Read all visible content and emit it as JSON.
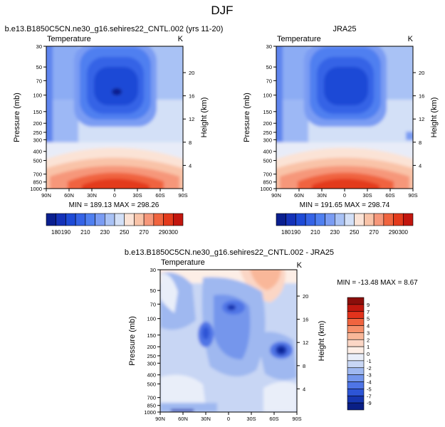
{
  "figure": {
    "title": "DJF"
  },
  "chart_data": [
    {
      "type": "heatmap",
      "title": "b.e13.B1850C5CN.ne30_g16.sehires22_CNTL.002 (yrs 11-20)",
      "left_subtitle": "Temperature",
      "right_subtitle": "K",
      "xlabel": "",
      "ylabel": "Pressure (mb)",
      "ylabel_right": "Height (km)",
      "x_ticks": [
        "90N",
        "60N",
        "30N",
        "0",
        "30S",
        "60S",
        "90S"
      ],
      "x_values": [
        90,
        60,
        30,
        0,
        -30,
        -60,
        -90
      ],
      "y_ticks": [
        "30",
        "50",
        "70",
        "100",
        "150",
        "200",
        "250",
        "300",
        "400",
        "500",
        "700",
        "850",
        "1000"
      ],
      "y_values": [
        30,
        50,
        70,
        100,
        150,
        200,
        250,
        300,
        400,
        500,
        700,
        850,
        1000
      ],
      "y_scale": "log",
      "ylim": [
        1000,
        30
      ],
      "height_ticks": [
        "4",
        "8",
        "12",
        "16",
        "20"
      ],
      "height_values_km": [
        4,
        8,
        12,
        16,
        20
      ],
      "stats": "MIN = 189.13   MAX = 298.26",
      "stats_values": {
        "min": 189.13,
        "max": 298.26
      },
      "colorbar": {
        "orientation": "horizontal",
        "levels": [
          180,
          190,
          200,
          210,
          220,
          230,
          240,
          250,
          260,
          270,
          280,
          290,
          300
        ],
        "labels": [
          "180",
          "190",
          "210",
          "230",
          "250",
          "270",
          "290",
          "300"
        ],
        "colors": [
          "#0a1f8f",
          "#1432b8",
          "#1e4ad6",
          "#3563e6",
          "#4f7ff0",
          "#7a9cf3",
          "#a9c2f5",
          "#d3e0f7",
          "#fbe3d6",
          "#f9c3a8",
          "#f6977a",
          "#f0643f",
          "#e33a1c",
          "#c2160e"
        ]
      }
    },
    {
      "type": "heatmap",
      "title": "JRA25",
      "left_subtitle": "Temperature",
      "right_subtitle": "K",
      "xlabel": "",
      "ylabel": "Pressure (mb)",
      "ylabel_right": "Height (km)",
      "x_ticks": [
        "90N",
        "60N",
        "30N",
        "0",
        "30S",
        "60S",
        "90S"
      ],
      "x_values": [
        90,
        60,
        30,
        0,
        -30,
        -60,
        -90
      ],
      "y_ticks": [
        "30",
        "50",
        "70",
        "100",
        "150",
        "200",
        "250",
        "300",
        "400",
        "500",
        "700",
        "850",
        "1000"
      ],
      "y_values": [
        30,
        50,
        70,
        100,
        150,
        200,
        250,
        300,
        400,
        500,
        700,
        850,
        1000
      ],
      "y_scale": "log",
      "ylim": [
        1000,
        30
      ],
      "height_ticks": [
        "4",
        "8",
        "12",
        "16",
        "20"
      ],
      "height_values_km": [
        4,
        8,
        12,
        16,
        20
      ],
      "stats": "MIN = 191.65   MAX = 298.74",
      "stats_values": {
        "min": 191.65,
        "max": 298.74
      },
      "colorbar": {
        "orientation": "horizontal",
        "levels": [
          180,
          190,
          200,
          210,
          220,
          230,
          240,
          250,
          260,
          270,
          280,
          290,
          300
        ],
        "labels": [
          "180",
          "190",
          "210",
          "230",
          "250",
          "270",
          "290",
          "300"
        ],
        "colors": [
          "#0a1f8f",
          "#1432b8",
          "#1e4ad6",
          "#3563e6",
          "#4f7ff0",
          "#7a9cf3",
          "#a9c2f5",
          "#d3e0f7",
          "#fbe3d6",
          "#f9c3a8",
          "#f6977a",
          "#f0643f",
          "#e33a1c",
          "#c2160e"
        ]
      }
    },
    {
      "type": "heatmap",
      "title": "b.e13.B1850C5CN.ne30_g16.sehires22_CNTL.002 - JRA25",
      "left_subtitle": "Temperature",
      "right_subtitle": "K",
      "xlabel": "",
      "ylabel": "Pressure (mb)",
      "ylabel_right": "Height (km)",
      "x_ticks": [
        "90N",
        "60N",
        "30N",
        "0",
        "30S",
        "60S",
        "90S"
      ],
      "x_values": [
        90,
        60,
        30,
        0,
        -30,
        -60,
        -90
      ],
      "y_ticks": [
        "30",
        "50",
        "70",
        "100",
        "150",
        "200",
        "250",
        "300",
        "400",
        "500",
        "700",
        "850",
        "1000"
      ],
      "y_values": [
        30,
        50,
        70,
        100,
        150,
        200,
        250,
        300,
        400,
        500,
        700,
        850,
        1000
      ],
      "y_scale": "log",
      "ylim": [
        1000,
        30
      ],
      "height_ticks": [
        "4",
        "8",
        "12",
        "16",
        "20"
      ],
      "height_values_km": [
        4,
        8,
        12,
        16,
        20
      ],
      "stats": "MIN = -13.48   MAX =  8.67",
      "stats_values": {
        "min": -13.48,
        "max": 8.67
      },
      "colorbar": {
        "orientation": "vertical",
        "levels": [
          -9,
          -7,
          -5,
          -4,
          -3,
          -2,
          -1,
          0,
          1,
          2,
          3,
          4,
          5,
          7,
          9
        ],
        "labels": [
          "9",
          "7",
          "5",
          "4",
          "3",
          "2",
          "1",
          "0",
          "-1",
          "-2",
          "-3",
          "-4",
          "-5",
          "-7",
          "-9"
        ],
        "colors_top_to_bottom": [
          "#8b0e0b",
          "#c0180f",
          "#e2331c",
          "#f0643f",
          "#f6906b",
          "#f9b799",
          "#fbd6c5",
          "#fdeee6",
          "#e9eef9",
          "#c8d6f4",
          "#9fb8f0",
          "#7496ec",
          "#4f75e6",
          "#2d55d6",
          "#1636b0",
          "#0a1f86"
        ]
      }
    }
  ]
}
